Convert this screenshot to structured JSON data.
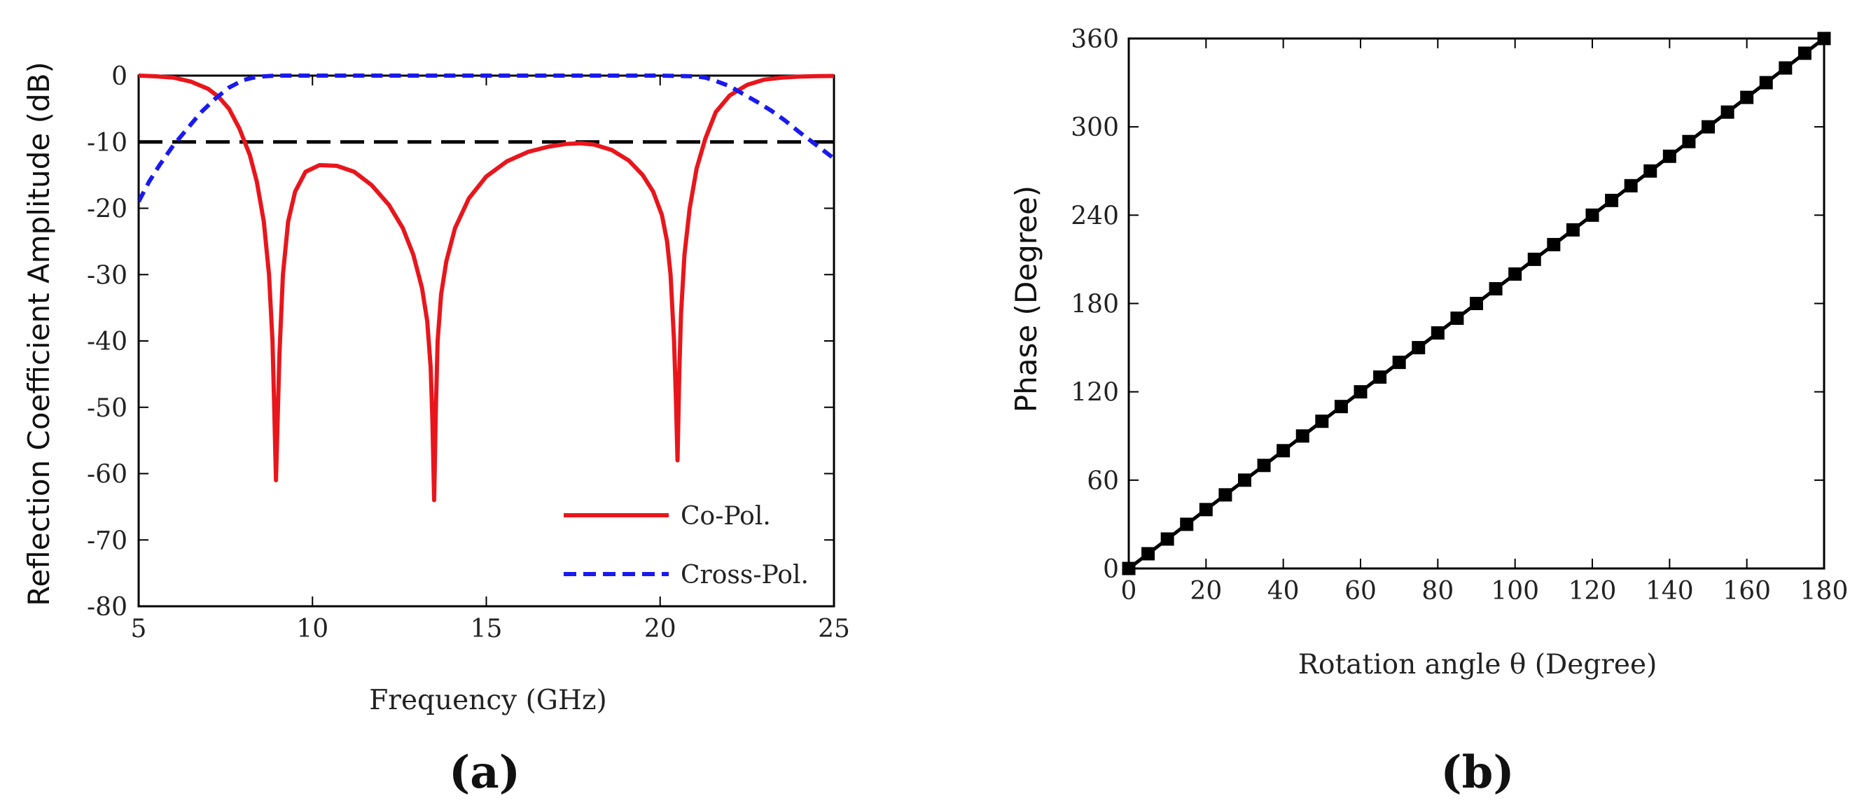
{
  "chart_data": [
    {
      "type": "line",
      "panel_label": "(a)",
      "xlabel": "Frequency (GHz)",
      "ylabel": "Reflection Coefficient Amplitude (dB)",
      "xlim": [
        5,
        25
      ],
      "ylim": [
        -80,
        0
      ],
      "xticks": [
        5,
        10,
        15,
        20,
        25
      ],
      "yticks": [
        0,
        -10,
        -20,
        -30,
        -40,
        -50,
        -60,
        -70,
        -80
      ],
      "xtick_labels": [
        "5",
        "10",
        "15",
        "20",
        "25"
      ],
      "ytick_labels": [
        "0",
        "-10",
        "-20",
        "-30",
        "-40",
        "-50",
        "-60",
        "-70",
        "-80"
      ],
      "legend_position": "bottom-right",
      "reference_line": {
        "y": -10,
        "style": "dashed",
        "color": "#000000"
      },
      "series": [
        {
          "name": "Co-Pol.",
          "color": "#e8161c",
          "style": "solid",
          "x": [
            5,
            5.5,
            6,
            6.5,
            7,
            7.3,
            7.6,
            7.9,
            8.2,
            8.4,
            8.6,
            8.75,
            8.85,
            8.9,
            8.95,
            9.05,
            9.15,
            9.3,
            9.5,
            9.8,
            10.2,
            10.7,
            11.2,
            11.7,
            12.2,
            12.6,
            12.9,
            13.15,
            13.3,
            13.4,
            13.45,
            13.5,
            13.55,
            13.6,
            13.7,
            13.85,
            14.1,
            14.5,
            15,
            15.6,
            16.2,
            16.8,
            17.3,
            17.7,
            18.1,
            18.6,
            19.1,
            19.5,
            19.8,
            20.05,
            20.2,
            20.3,
            20.4,
            20.45,
            20.5,
            20.55,
            20.6,
            20.7,
            20.85,
            21.05,
            21.3,
            21.6,
            22,
            22.5,
            23,
            23.5,
            24,
            24.5,
            25
          ],
          "y": [
            0,
            -0.1,
            -0.3,
            -0.9,
            -2,
            -3.2,
            -5,
            -8,
            -12,
            -16,
            -22,
            -30,
            -40,
            -50,
            -61,
            -42,
            -30,
            -22,
            -17.5,
            -14.5,
            -13.5,
            -13.6,
            -14.5,
            -16.5,
            -19.5,
            -23,
            -27,
            -32,
            -37,
            -44,
            -52,
            -64,
            -50,
            -40,
            -33,
            -28,
            -23,
            -18.5,
            -15.2,
            -12.9,
            -11.5,
            -10.7,
            -10.3,
            -10.2,
            -10.4,
            -11.2,
            -12.8,
            -15,
            -17.5,
            -21,
            -25,
            -30,
            -40,
            -48,
            -58,
            -45,
            -36,
            -27,
            -20,
            -14,
            -9.5,
            -5.5,
            -3,
            -1.4,
            -0.6,
            -0.3,
            -0.15,
            -0.08,
            -0.05
          ]
        },
        {
          "name": "Cross-Pol.",
          "color": "#1a1aee",
          "style": "dashed",
          "x": [
            5,
            5.3,
            5.6,
            6,
            6.4,
            6.8,
            7.2,
            7.6,
            8,
            8.3,
            8.6,
            9,
            10,
            12,
            14,
            16,
            18,
            20,
            21,
            21.3,
            21.6,
            22,
            22.4,
            22.8,
            23.2,
            23.6,
            24,
            24.5,
            25
          ],
          "y": [
            -19,
            -16,
            -13.5,
            -10.5,
            -8,
            -5.5,
            -3.5,
            -1.8,
            -0.7,
            -0.3,
            -0.1,
            0,
            0,
            0,
            0,
            0,
            0,
            0,
            -0.1,
            -0.3,
            -0.8,
            -1.6,
            -2.8,
            -4,
            -5.3,
            -6.8,
            -8.5,
            -10.5,
            -12.5
          ]
        }
      ]
    },
    {
      "type": "line",
      "panel_label": "(b)",
      "xlabel": "Rotation angle θ (Degree)",
      "ylabel": "Phase (Degree)",
      "xlim": [
        0,
        180
      ],
      "ylim": [
        0,
        360
      ],
      "xticks": [
        0,
        20,
        40,
        60,
        80,
        100,
        120,
        140,
        160,
        180
      ],
      "yticks": [
        0,
        60,
        120,
        180,
        240,
        300,
        360
      ],
      "xtick_labels": [
        "0",
        "20",
        "40",
        "60",
        "80",
        "100",
        "120",
        "140",
        "160",
        "180"
      ],
      "ytick_labels": [
        "0",
        "60",
        "120",
        "180",
        "240",
        "300",
        "360"
      ],
      "series": [
        {
          "name": "Phase",
          "color": "#000000",
          "style": "solid",
          "marker": "square",
          "x": [
            0,
            5,
            10,
            15,
            20,
            25,
            30,
            35,
            40,
            45,
            50,
            55,
            60,
            65,
            70,
            75,
            80,
            85,
            90,
            95,
            100,
            105,
            110,
            115,
            120,
            125,
            130,
            135,
            140,
            145,
            150,
            155,
            160,
            165,
            170,
            175,
            180
          ],
          "y": [
            0,
            10,
            20,
            30,
            40,
            50,
            60,
            70,
            80,
            90,
            100,
            110,
            120,
            130,
            140,
            150,
            160,
            170,
            180,
            190,
            200,
            210,
            220,
            230,
            240,
            250,
            260,
            270,
            280,
            290,
            300,
            310,
            320,
            330,
            340,
            350,
            360
          ]
        }
      ]
    }
  ]
}
